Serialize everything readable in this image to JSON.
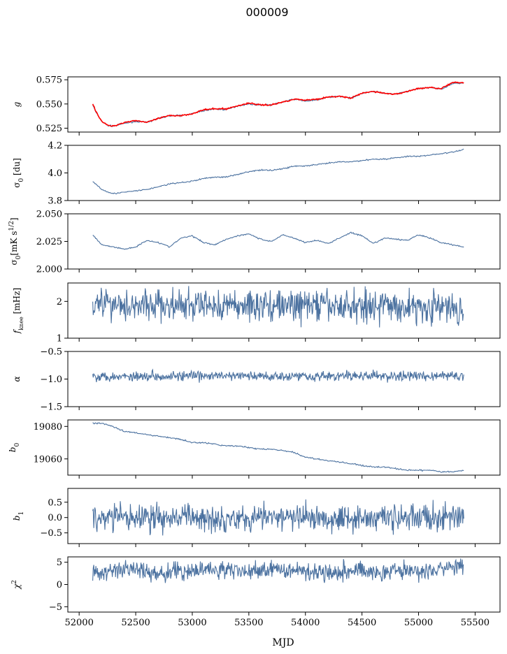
{
  "figure": {
    "title": "000009",
    "xlabel": "MJD"
  },
  "colors": {
    "series": "#4c72a0",
    "overlay": "#ff0000",
    "axis": "#000000"
  },
  "chart_data": [
    {
      "type": "line",
      "ylabel": "g",
      "ylim": [
        0.521,
        0.578
      ],
      "yticks": [
        0.525,
        0.55,
        0.575
      ],
      "ytick_labels": [
        "0.525",
        "0.550",
        "0.575"
      ],
      "xlim": [
        51900,
        55720
      ],
      "series": [
        {
          "color": "#4c72a0",
          "x": [
            52120,
            52150,
            52200,
            52250,
            52300,
            52400,
            52500,
            52600,
            52700,
            52800,
            52900,
            53000,
            53100,
            53200,
            53300,
            53400,
            53500,
            53600,
            53700,
            53800,
            53900,
            54000,
            54100,
            54200,
            54300,
            54400,
            54500,
            54600,
            54700,
            54800,
            54900,
            55000,
            55100,
            55200,
            55300,
            55400
          ],
          "y": [
            0.549,
            0.541,
            0.532,
            0.528,
            0.527,
            0.53,
            0.532,
            0.531,
            0.535,
            0.538,
            0.538,
            0.54,
            0.543,
            0.545,
            0.544,
            0.548,
            0.55,
            0.549,
            0.549,
            0.552,
            0.555,
            0.553,
            0.554,
            0.557,
            0.558,
            0.556,
            0.561,
            0.563,
            0.561,
            0.56,
            0.563,
            0.566,
            0.567,
            0.565,
            0.571,
            0.572
          ]
        },
        {
          "color": "#ff0000",
          "x": [
            52120,
            52150,
            52200,
            52250,
            52300,
            52400,
            52500,
            52600,
            52700,
            52800,
            52900,
            53000,
            53100,
            53200,
            53300,
            53400,
            53500,
            53600,
            53700,
            53800,
            53900,
            54000,
            54100,
            54200,
            54300,
            54400,
            54500,
            54600,
            54700,
            54800,
            54900,
            55000,
            55100,
            55200,
            55300,
            55400
          ],
          "y": [
            0.55,
            0.542,
            0.532,
            0.528,
            0.527,
            0.531,
            0.533,
            0.531,
            0.535,
            0.538,
            0.538,
            0.54,
            0.544,
            0.545,
            0.545,
            0.548,
            0.551,
            0.549,
            0.549,
            0.552,
            0.555,
            0.554,
            0.555,
            0.557,
            0.558,
            0.556,
            0.561,
            0.563,
            0.561,
            0.56,
            0.563,
            0.566,
            0.567,
            0.566,
            0.572,
            0.572
          ]
        }
      ]
    },
    {
      "type": "line",
      "ylabel": "σ0 [du]",
      "ylim": [
        3.8,
        4.2
      ],
      "yticks": [
        3.8,
        4.0,
        4.2
      ],
      "ytick_labels": [
        "3.8",
        "4.0",
        "4.2"
      ],
      "xlim": [
        51900,
        55720
      ],
      "series": [
        {
          "color": "#4c72a0",
          "x": [
            52120,
            52200,
            52300,
            52400,
            52500,
            52600,
            52700,
            52800,
            52900,
            53000,
            53100,
            53200,
            53300,
            53400,
            53500,
            53600,
            53700,
            53800,
            53900,
            54000,
            54100,
            54200,
            54300,
            54400,
            54500,
            54600,
            54700,
            54800,
            54900,
            55000,
            55100,
            55200,
            55300,
            55400
          ],
          "y": [
            3.94,
            3.88,
            3.85,
            3.86,
            3.87,
            3.88,
            3.9,
            3.92,
            3.93,
            3.94,
            3.96,
            3.97,
            3.97,
            3.99,
            4.01,
            4.02,
            4.02,
            4.03,
            4.05,
            4.05,
            4.06,
            4.07,
            4.08,
            4.08,
            4.09,
            4.1,
            4.1,
            4.11,
            4.12,
            4.12,
            4.13,
            4.14,
            4.15,
            4.17
          ]
        }
      ]
    },
    {
      "type": "line",
      "ylabel": "σ0[mK s^1/2]",
      "ylim": [
        2.0,
        2.05
      ],
      "yticks": [
        2.0,
        2.025,
        2.05
      ],
      "ytick_labels": [
        "2.000",
        "2.025",
        "2.050"
      ],
      "xlim": [
        51900,
        55720
      ],
      "series": [
        {
          "color": "#4c72a0",
          "x": [
            52120,
            52200,
            52300,
            52400,
            52500,
            52600,
            52700,
            52800,
            52900,
            53000,
            53100,
            53200,
            53300,
            53400,
            53500,
            53600,
            53700,
            53800,
            53900,
            54000,
            54100,
            54200,
            54300,
            54400,
            54500,
            54600,
            54700,
            54800,
            54900,
            55000,
            55100,
            55200,
            55300,
            55400
          ],
          "y": [
            2.031,
            2.022,
            2.02,
            2.018,
            2.02,
            2.026,
            2.024,
            2.02,
            2.028,
            2.03,
            2.024,
            2.022,
            2.027,
            2.03,
            2.032,
            2.027,
            2.025,
            2.031,
            2.028,
            2.024,
            2.026,
            2.023,
            2.028,
            2.033,
            2.03,
            2.023,
            2.028,
            2.027,
            2.026,
            2.031,
            2.028,
            2.024,
            2.022,
            2.02
          ]
        }
      ]
    },
    {
      "type": "line",
      "ylabel": "fknee [mHz]",
      "ylim": [
        1.0,
        2.5
      ],
      "yticks": [
        1,
        2
      ],
      "ytick_labels": [
        "1",
        "2"
      ],
      "xlim": [
        51900,
        55720
      ],
      "series": [
        {
          "color": "#4c72a0",
          "noise": 0.22,
          "x": [
            52120,
            52300,
            52500,
            52700,
            52900,
            53100,
            53300,
            53500,
            53700,
            53900,
            54100,
            54300,
            54500,
            54700,
            54900,
            55100,
            55300,
            55400
          ],
          "y": [
            2.0,
            1.95,
            1.9,
            1.9,
            1.85,
            1.9,
            1.88,
            1.9,
            1.9,
            1.88,
            1.9,
            1.85,
            1.9,
            1.88,
            1.85,
            1.85,
            1.8,
            1.8
          ]
        }
      ]
    },
    {
      "type": "line",
      "ylabel": "α",
      "ylim": [
        -1.5,
        -0.5
      ],
      "yticks": [
        -1.5,
        -1.0,
        -0.5
      ],
      "ytick_labels": [
        "−1.5",
        "−1.0",
        "−0.5"
      ],
      "xlim": [
        51900,
        55720
      ],
      "series": [
        {
          "color": "#4c72a0",
          "noise": 0.045,
          "x": [
            52120,
            52400,
            52700,
            53000,
            53300,
            53600,
            53900,
            54200,
            54500,
            54800,
            55100,
            55400
          ],
          "y": [
            -0.95,
            -0.95,
            -0.94,
            -0.95,
            -0.94,
            -0.95,
            -0.94,
            -0.95,
            -0.94,
            -0.95,
            -0.94,
            -0.95
          ]
        }
      ]
    },
    {
      "type": "line",
      "ylabel": "b0",
      "ylim": [
        19050,
        19084
      ],
      "yticks": [
        19060,
        19080
      ],
      "ytick_labels": [
        "19060",
        "19080"
      ],
      "xlim": [
        51900,
        55720
      ],
      "series": [
        {
          "color": "#4c72a0",
          "x": [
            52120,
            52200,
            52300,
            52400,
            52500,
            52600,
            52700,
            52800,
            52900,
            53000,
            53100,
            53200,
            53300,
            53400,
            53500,
            53600,
            53700,
            53800,
            53900,
            54000,
            54100,
            54200,
            54300,
            54400,
            54500,
            54600,
            54700,
            54800,
            54900,
            55000,
            55100,
            55200,
            55300,
            55400
          ],
          "y": [
            19082,
            19082,
            19080,
            19077,
            19076,
            19075,
            19074,
            19073,
            19072,
            19070,
            19070,
            19069,
            19068,
            19068,
            19067,
            19066,
            19066,
            19065,
            19064,
            19061,
            19060,
            19059,
            19058,
            19057,
            19056,
            19055,
            19055,
            19054,
            19053,
            19053,
            19053,
            19052,
            19052,
            19053
          ]
        }
      ]
    },
    {
      "type": "line",
      "ylabel": "b1",
      "ylim": [
        -0.85,
        0.95
      ],
      "yticks": [
        -0.5,
        0.0,
        0.5
      ],
      "ytick_labels": [
        "−0.5",
        "0.0",
        "0.5"
      ],
      "xlim": [
        51900,
        55720
      ],
      "series": [
        {
          "color": "#4c72a0",
          "noise": 0.22,
          "x": [
            52120,
            52400,
            52700,
            53000,
            53300,
            53600,
            53900,
            54200,
            54500,
            54800,
            55100,
            55400
          ],
          "y": [
            0.0,
            0.0,
            0.0,
            0.0,
            0.0,
            0.0,
            0.0,
            0.0,
            0.0,
            0.0,
            0.0,
            0.0
          ]
        }
      ]
    },
    {
      "type": "line",
      "ylabel": "χ2",
      "ylim": [
        -6.2,
        6.2
      ],
      "yticks": [
        -5,
        0,
        5
      ],
      "ytick_labels": [
        "−5",
        "0",
        "5"
      ],
      "xlim": [
        51900,
        55720
      ],
      "xticks": [
        52000,
        52500,
        53000,
        53500,
        54000,
        54500,
        55000,
        55500
      ],
      "xtick_labels": [
        "52000",
        "52500",
        "53000",
        "53500",
        "54000",
        "54500",
        "55000",
        "55500"
      ],
      "series": [
        {
          "color": "#4c72a0",
          "noise": 1.0,
          "x": [
            52120,
            52300,
            52500,
            52700,
            52900,
            53100,
            53300,
            53500,
            53700,
            53900,
            54100,
            54300,
            54500,
            54700,
            54900,
            55100,
            55300,
            55400
          ],
          "y": [
            2.5,
            3.0,
            3.5,
            2.5,
            2.8,
            3.5,
            3.2,
            3.0,
            3.2,
            3.5,
            2.8,
            3.0,
            3.2,
            2.8,
            3.2,
            3.0,
            3.8,
            4.0
          ]
        }
      ]
    }
  ]
}
